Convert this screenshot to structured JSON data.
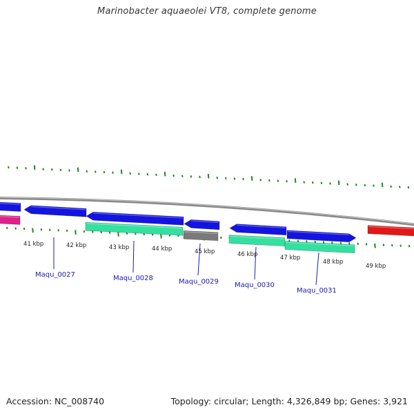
{
  "title": "Marinobacter aquaeolei VT8, complete genome",
  "footer": {
    "accession": "Accession: NC_008740",
    "topology": "Topology: circular; Length: 4,326,849 bp; Genes: 3,921"
  },
  "colors": {
    "backbone": "#8a8a8a",
    "tick": "#1a8a1a",
    "forward_gene": "#1414e0",
    "cds_green": "#33e0a0",
    "cds_gray": "#7a7a7a",
    "rna_red": "#e01818",
    "magenta": "#e0208a",
    "label_line": "#1a1ab0"
  },
  "scale_labels": [
    "41 kbp",
    "42 kbp",
    "43 kbp",
    "44 kbp",
    "45 kbp",
    "46 kbp",
    "47 kbp",
    "48 kbp",
    "49 kbp"
  ],
  "gene_labels": [
    "Maqu_0027",
    "Maqu_0028",
    "Maqu_0029",
    "Maqu_0030",
    "Maqu_0031"
  ]
}
